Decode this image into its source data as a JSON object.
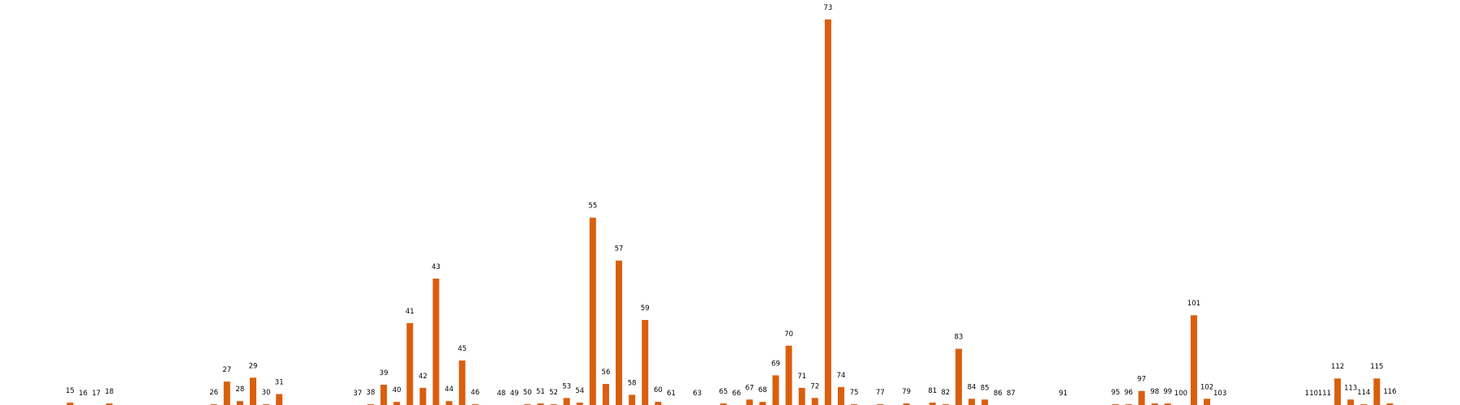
{
  "chart_data": {
    "type": "bar",
    "title": "",
    "xlabel": "",
    "ylabel": "",
    "bar_color": "#d95f0e",
    "axes_visible": false,
    "grid": false,
    "categories": [
      "15",
      "16",
      "17",
      "18",
      "26",
      "27",
      "28",
      "29",
      "30",
      "31",
      "37",
      "38",
      "39",
      "40",
      "41",
      "42",
      "43",
      "44",
      "45",
      "46",
      "48",
      "49",
      "50",
      "51",
      "52",
      "53",
      "54",
      "55",
      "56",
      "57",
      "58",
      "59",
      "60",
      "61",
      "63",
      "65",
      "66",
      "67",
      "68",
      "69",
      "70",
      "71",
      "72",
      "73",
      "74",
      "75",
      "77",
      "79",
      "81",
      "82",
      "83",
      "84",
      "85",
      "86",
      "87",
      "91",
      "95",
      "96",
      "97",
      "98",
      "99",
      "100",
      "101",
      "102",
      "103",
      "110",
      "111",
      "112",
      "113",
      "114",
      "115",
      "116"
    ],
    "x": [
      15,
      16,
      17,
      18,
      26,
      27,
      28,
      29,
      30,
      31,
      37,
      38,
      39,
      40,
      41,
      42,
      43,
      44,
      45,
      46,
      48,
      49,
      50,
      51,
      52,
      53,
      54,
      55,
      56,
      57,
      58,
      59,
      60,
      61,
      63,
      65,
      66,
      67,
      68,
      69,
      70,
      71,
      72,
      73,
      74,
      75,
      77,
      79,
      81,
      82,
      83,
      84,
      85,
      86,
      87,
      91,
      95,
      96,
      97,
      98,
      99,
      100,
      101,
      102,
      103,
      110,
      111,
      112,
      113,
      114,
      115,
      116
    ],
    "values": [
      3,
      0,
      0,
      2,
      1,
      30,
      5,
      35,
      1,
      14,
      0,
      1,
      26,
      4,
      105,
      22,
      162,
      5,
      57,
      1,
      0,
      0,
      1,
      2,
      1,
      9,
      3,
      240,
      27,
      185,
      13,
      109,
      4,
      0,
      0,
      2,
      0,
      7,
      4,
      38,
      76,
      22,
      9,
      494,
      23,
      1,
      1,
      2,
      3,
      1,
      72,
      8,
      7,
      0,
      0,
      0,
      1,
      1,
      18,
      2,
      2,
      0,
      115,
      8,
      0,
      0,
      0,
      34,
      7,
      1,
      34,
      2
    ],
    "ylim": [
      0,
      494
    ],
    "xlim": [
      11,
      120
    ]
  }
}
